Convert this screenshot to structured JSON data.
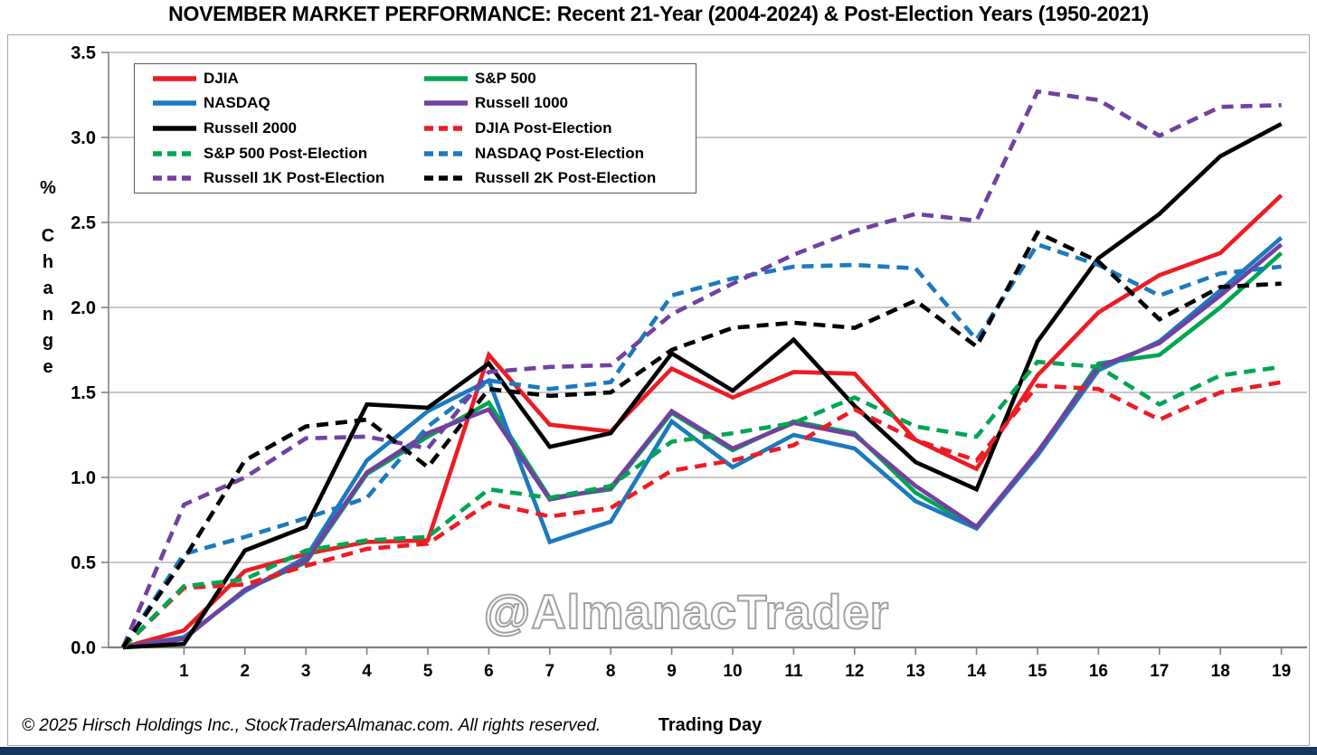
{
  "page": {
    "background": "#ffffff",
    "bottom_strip_color": "#17375d",
    "watermark": "@AlmanacTrader",
    "footer": "© 2025 Hirsch Holdings Inc., StockTradersAlmanac.com. All rights reserved."
  },
  "chart_data": {
    "type": "line",
    "title": "NOVEMBER MARKET PERFORMANCE: Recent 21-Year (2004-2024) & Post-Election Years (1950-2021)",
    "xlabel": "Trading Day",
    "ylabel": "% Change",
    "ylabel_stacked": [
      "%",
      "C",
      "h",
      "a",
      "n",
      "g",
      "e"
    ],
    "ylim": [
      0.0,
      3.5
    ],
    "y_ticks": [
      0.0,
      0.5,
      1.0,
      1.5,
      2.0,
      2.5,
      3.0,
      3.5
    ],
    "x_tick_labels": [
      "1",
      "2",
      "3",
      "4",
      "5",
      "6",
      "7",
      "8",
      "9",
      "10",
      "11",
      "12",
      "13",
      "14",
      "15",
      "16",
      "17",
      "18",
      "19"
    ],
    "x": [
      0,
      1,
      2,
      3,
      4,
      5,
      6,
      7,
      8,
      9,
      10,
      11,
      12,
      13,
      14,
      15,
      16,
      17,
      18,
      19
    ],
    "grid": "horizontal-only",
    "legend_position": "top-left",
    "series": [
      {
        "name": "DJIA",
        "style": "solid",
        "color": "#ec1c24",
        "values": [
          0,
          0.1,
          0.45,
          0.55,
          0.62,
          0.63,
          1.72,
          1.31,
          1.27,
          1.64,
          1.47,
          1.62,
          1.61,
          1.22,
          1.05,
          1.6,
          1.97,
          2.19,
          2.32,
          2.66
        ]
      },
      {
        "name": "S&P 500",
        "style": "solid",
        "color": "#00a551",
        "values": [
          0,
          0.05,
          0.34,
          0.5,
          1.02,
          1.24,
          1.44,
          0.88,
          0.93,
          1.38,
          1.16,
          1.33,
          1.26,
          0.91,
          0.7,
          1.14,
          1.67,
          1.72,
          2.0,
          2.32
        ]
      },
      {
        "name": "NASDAQ",
        "style": "solid",
        "color": "#1b79bf",
        "values": [
          0,
          0.06,
          0.33,
          0.53,
          1.1,
          1.39,
          1.57,
          0.62,
          0.74,
          1.33,
          1.06,
          1.25,
          1.17,
          0.86,
          0.7,
          1.13,
          1.63,
          1.8,
          2.1,
          2.41
        ]
      },
      {
        "name": "Russell 1000",
        "style": "solid",
        "color": "#7141a1",
        "values": [
          0,
          0.05,
          0.34,
          0.51,
          1.03,
          1.26,
          1.4,
          0.87,
          0.94,
          1.39,
          1.17,
          1.32,
          1.25,
          0.95,
          0.71,
          1.15,
          1.65,
          1.79,
          2.07,
          2.37
        ]
      },
      {
        "name": "Russell 2000",
        "style": "solid",
        "color": "#000000",
        "values": [
          0,
          0.02,
          0.57,
          0.71,
          1.43,
          1.41,
          1.67,
          1.18,
          1.26,
          1.73,
          1.51,
          1.81,
          1.42,
          1.09,
          0.93,
          1.8,
          2.29,
          2.55,
          2.89,
          3.08
        ]
      },
      {
        "name": "DJIA Post-Election",
        "style": "dashed",
        "color": "#ec1c24",
        "values": [
          0,
          0.35,
          0.37,
          0.48,
          0.58,
          0.61,
          0.85,
          0.77,
          0.82,
          1.04,
          1.1,
          1.19,
          1.4,
          1.22,
          1.1,
          1.54,
          1.52,
          1.34,
          1.5,
          1.56
        ]
      },
      {
        "name": "S&P 500 Post-Election",
        "style": "dashed",
        "color": "#00a551",
        "values": [
          0,
          0.36,
          0.4,
          0.57,
          0.63,
          0.65,
          0.93,
          0.88,
          0.95,
          1.21,
          1.26,
          1.32,
          1.47,
          1.3,
          1.24,
          1.68,
          1.65,
          1.43,
          1.6,
          1.65
        ]
      },
      {
        "name": "NASDAQ Post-Election",
        "style": "dashed",
        "color": "#1b79bf",
        "values": [
          0,
          0.55,
          0.65,
          0.76,
          0.88,
          1.3,
          1.57,
          1.52,
          1.56,
          2.07,
          2.17,
          2.24,
          2.25,
          2.23,
          1.81,
          2.37,
          2.25,
          2.07,
          2.2,
          2.24
        ]
      },
      {
        "name": "Russell 1K Post-Election",
        "style": "dashed",
        "color": "#7141a1",
        "values": [
          0,
          0.84,
          1.0,
          1.23,
          1.24,
          1.17,
          1.62,
          1.65,
          1.66,
          1.96,
          2.14,
          2.31,
          2.45,
          2.55,
          2.51,
          3.27,
          3.22,
          3.01,
          3.18,
          3.19
        ]
      },
      {
        "name": "Russell 2K Post-Election",
        "style": "dashed",
        "color": "#000000",
        "values": [
          0,
          0.52,
          1.1,
          1.3,
          1.34,
          1.06,
          1.52,
          1.48,
          1.5,
          1.75,
          1.88,
          1.91,
          1.88,
          2.04,
          1.77,
          2.44,
          2.27,
          1.93,
          2.12,
          2.14
        ]
      }
    ]
  }
}
